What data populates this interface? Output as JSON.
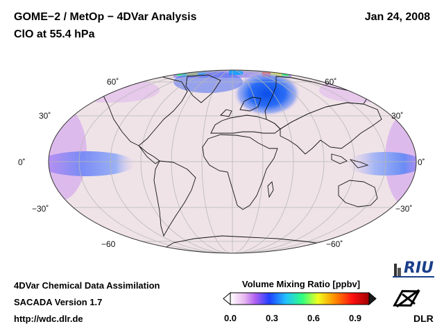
{
  "header": {
    "title_line1": "GOME−2 / MetOp − 4DVar Analysis",
    "title_line2": "ClO at 55.4 hPa",
    "date": "Jan 24, 2008"
  },
  "map": {
    "projection": "Mollweide",
    "lat_labels_left": [
      "60˚",
      "30˚",
      "0˚",
      "−30˚",
      "−60"
    ],
    "lat_labels_right": [
      "60˚",
      "30˚",
      "0˚",
      "−30˚",
      "−60˚"
    ],
    "background_color": "#efe3e7",
    "features": [
      "Arctic ClO maximum over Scandinavia/northern Europe",
      "tropical belts over Pacific"
    ]
  },
  "footer": {
    "line1": "4DVar Chemical Data Assimilation",
    "line2": "SACADA Version 1.7",
    "line3": "http://wdc.dlr.de"
  },
  "colorbar": {
    "title": "Volume Mixing Ratio [ppbv]",
    "ticks": [
      "0.0",
      "0.3",
      "0.6",
      "0.9"
    ],
    "min": 0.0,
    "max": 1.0,
    "colors": [
      "#ffffff",
      "#e8b8f0",
      "#b060f0",
      "#2040ff",
      "#20c0ff",
      "#30ff80",
      "#f0ff20",
      "#ff9000",
      "#ff1010",
      "#b00000"
    ]
  },
  "logos": {
    "riu": "RIU",
    "dlr": "DLR"
  }
}
